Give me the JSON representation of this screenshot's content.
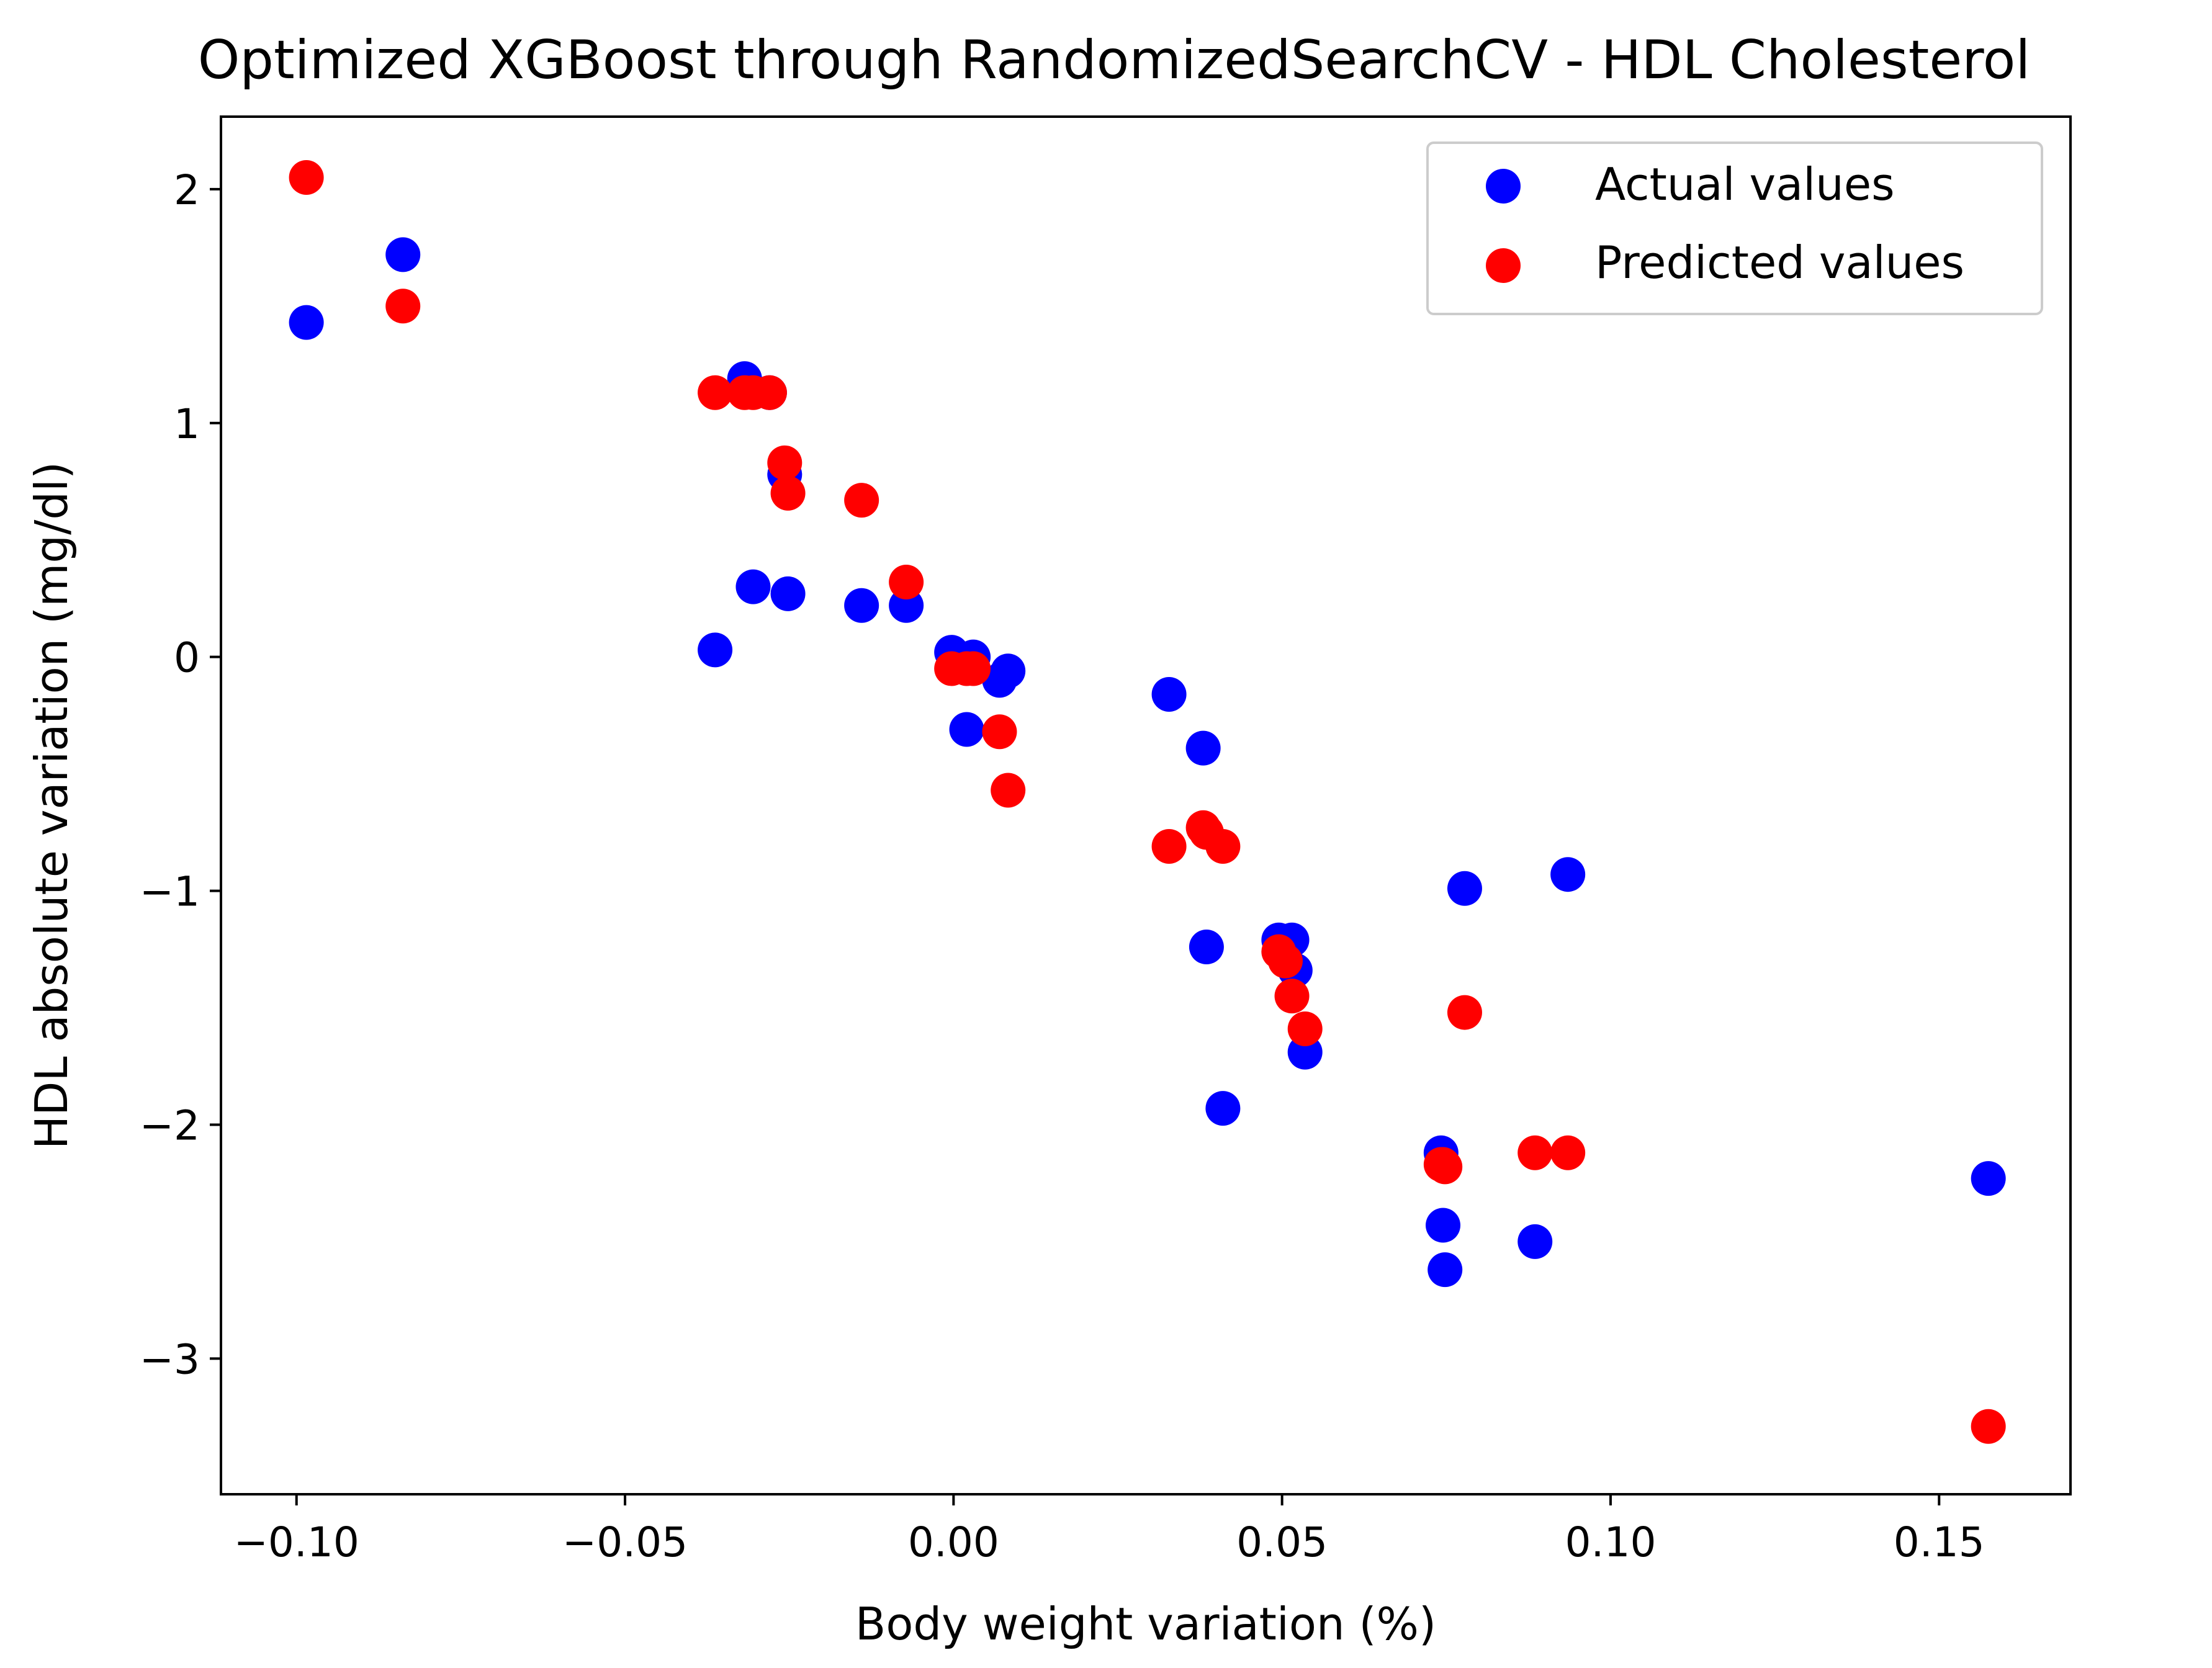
{
  "chart_data": {
    "type": "scatter",
    "title": "Optimized XGBoost through RandomizedSearchCV - HDL Cholesterol",
    "xlabel": "Body weight variation (%)",
    "ylabel": "HDL absolute variation (mg/dl)",
    "xlim": [
      -0.1115,
      0.17
    ],
    "ylim": [
      -3.58,
      2.31
    ],
    "xticks": [
      -0.1,
      -0.05,
      0.0,
      0.05,
      0.1,
      0.15
    ],
    "xtick_labels": [
      "−0.10",
      "−0.05",
      "0.00",
      "0.05",
      "0.10",
      "0.15"
    ],
    "yticks": [
      2,
      1,
      0,
      -1,
      -2,
      -3
    ],
    "ytick_labels": [
      "2",
      "1",
      "0",
      "−1",
      "−2",
      "−3"
    ],
    "legend_position": "top-right",
    "series": [
      {
        "name": "Actual values",
        "color": "#0000ff",
        "points": [
          [
            -0.0985,
            1.43
          ],
          [
            -0.0838,
            1.72
          ],
          [
            -0.0363,
            0.03
          ],
          [
            -0.0318,
            1.19
          ],
          [
            -0.0305,
            0.3
          ],
          [
            -0.028,
            1.13
          ],
          [
            -0.0257,
            0.78
          ],
          [
            -0.0252,
            0.27
          ],
          [
            -0.014,
            0.22
          ],
          [
            -0.0072,
            0.22
          ],
          [
            -0.0003,
            0.02
          ],
          [
            0.002,
            -0.31
          ],
          [
            0.003,
            0.0
          ],
          [
            0.007,
            -0.1
          ],
          [
            0.0083,
            -0.06
          ],
          [
            0.0328,
            -0.16
          ],
          [
            0.038,
            -0.39
          ],
          [
            0.0385,
            -1.24
          ],
          [
            0.041,
            -1.93
          ],
          [
            0.0495,
            -1.21
          ],
          [
            0.0515,
            -1.21
          ],
          [
            0.052,
            -1.34
          ],
          [
            0.0535,
            -1.69
          ],
          [
            0.0742,
            -2.12
          ],
          [
            0.0745,
            -2.43
          ],
          [
            0.0748,
            -2.62
          ],
          [
            0.0778,
            -0.99
          ],
          [
            0.0885,
            -2.5
          ],
          [
            0.0935,
            -0.93
          ],
          [
            0.1575,
            -2.23
          ]
        ]
      },
      {
        "name": "Predicted values",
        "color": "#ff0000",
        "points": [
          [
            -0.0985,
            2.05
          ],
          [
            -0.0838,
            1.5
          ],
          [
            -0.0363,
            1.13
          ],
          [
            -0.0318,
            1.13
          ],
          [
            -0.0305,
            1.13
          ],
          [
            -0.028,
            1.13
          ],
          [
            -0.0257,
            0.83
          ],
          [
            -0.0252,
            0.7
          ],
          [
            -0.014,
            0.67
          ],
          [
            -0.0072,
            0.32
          ],
          [
            -0.0003,
            -0.05
          ],
          [
            0.002,
            -0.05
          ],
          [
            0.003,
            -0.05
          ],
          [
            0.007,
            -0.32
          ],
          [
            0.0083,
            -0.57
          ],
          [
            0.0328,
            -0.81
          ],
          [
            0.038,
            -0.73
          ],
          [
            0.0385,
            -0.75
          ],
          [
            0.041,
            -0.81
          ],
          [
            0.0495,
            -1.26
          ],
          [
            0.0505,
            -1.3
          ],
          [
            0.0515,
            -1.45
          ],
          [
            0.0535,
            -1.59
          ],
          [
            0.0742,
            -2.17
          ],
          [
            0.0745,
            -2.17
          ],
          [
            0.0748,
            -2.18
          ],
          [
            0.0778,
            -1.52
          ],
          [
            0.0885,
            -2.12
          ],
          [
            0.0935,
            -2.12
          ],
          [
            0.1575,
            -3.29
          ]
        ]
      }
    ]
  }
}
